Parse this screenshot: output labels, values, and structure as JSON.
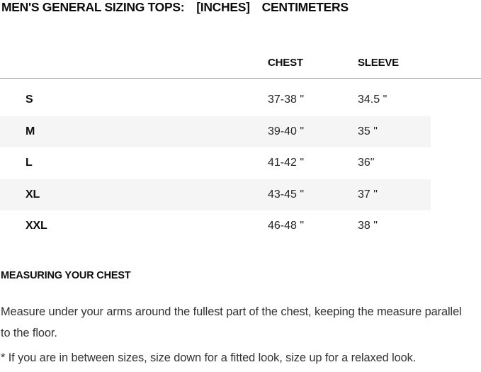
{
  "header": {
    "title": "MEN'S GENERAL SIZING TOPS:",
    "units": {
      "inches": "[INCHES]",
      "centimeters": "CENTIMETERS"
    }
  },
  "table": {
    "columns": {
      "chest": "CHEST",
      "sleeve": "SLEEVE"
    },
    "rows": [
      {
        "size": "S",
        "chest": "37-38 \"",
        "sleeve": "34.5 \""
      },
      {
        "size": "M",
        "chest": "39-40 \"",
        "sleeve": "35 \""
      },
      {
        "size": "L",
        "chest": "41-42 \"",
        "sleeve": "36\""
      },
      {
        "size": "XL",
        "chest": "43-45 \"",
        "sleeve": "37 \""
      },
      {
        "size": "XXL",
        "chest": "46-48 \"",
        "sleeve": "38 \""
      }
    ]
  },
  "measuring": {
    "heading": "MEASURING YOUR CHEST",
    "body": "Measure under your arms around the fullest part of the chest, keeping the measure parallel to the floor.",
    "footnote": "* If you are in between sizes, size down for a fitted look, size up for a relaxed look."
  },
  "colors": {
    "alt_row_bg": "#f5f5f5",
    "rule": "#a8a8a8",
    "heading_text": "#0d0d0d",
    "body_text": "#333333"
  }
}
